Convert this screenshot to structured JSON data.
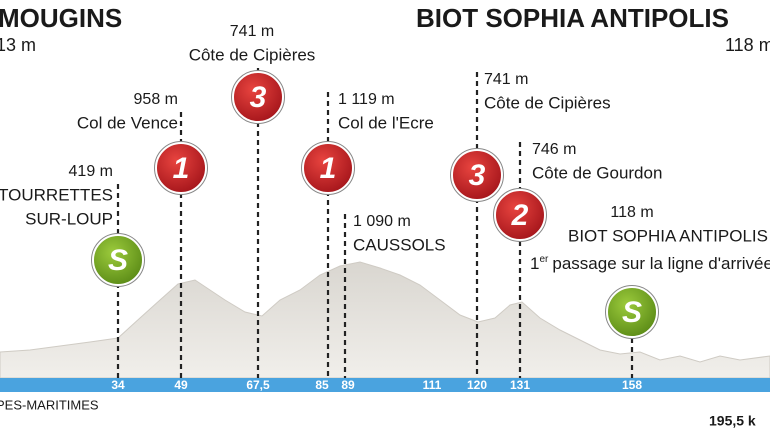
{
  "header": {
    "start_name": "MOUGINS",
    "start_altitude": "13 m",
    "finish_name": "BIOT SOPHIA ANTIPOLIS",
    "finish_altitude": "118 m"
  },
  "points": [
    {
      "altitude": "419 m",
      "lines": [
        "TOURRETTES",
        "SUR-LOUP"
      ],
      "badge": "S",
      "km": "34"
    },
    {
      "altitude": "958 m",
      "lines": [
        "Col de Vence"
      ],
      "badge": "1",
      "km": "49"
    },
    {
      "altitude": "741 m",
      "lines": [
        "Côte de Cipières"
      ],
      "badge": "3",
      "km": "67,5"
    },
    {
      "altitude": "1 119 m",
      "lines": [
        "Col de l'Ecre"
      ],
      "badge": "1",
      "km": "85"
    },
    {
      "altitude": "1 090 m",
      "lines": [
        "CAUSSOLS"
      ],
      "km": "89"
    },
    {
      "km": "111"
    },
    {
      "altitude": "741 m",
      "lines": [
        "Côte de Cipières"
      ],
      "badge": "3",
      "km": "120"
    },
    {
      "altitude": "746 m",
      "lines": [
        "Côte de Gourdon"
      ],
      "badge": "2",
      "km": "131"
    },
    {
      "altitude": "118 m",
      "lines": [
        "BIOT SOPHIA ANTIPOLIS"
      ],
      "note": {
        "number": "1",
        "suffix": "er",
        "text": "passage sur la ligne d'arrivée"
      },
      "badge": "S",
      "km": "158"
    }
  ],
  "footer": {
    "region": "PES-MARITIMES",
    "distance": "195,5 k"
  }
}
